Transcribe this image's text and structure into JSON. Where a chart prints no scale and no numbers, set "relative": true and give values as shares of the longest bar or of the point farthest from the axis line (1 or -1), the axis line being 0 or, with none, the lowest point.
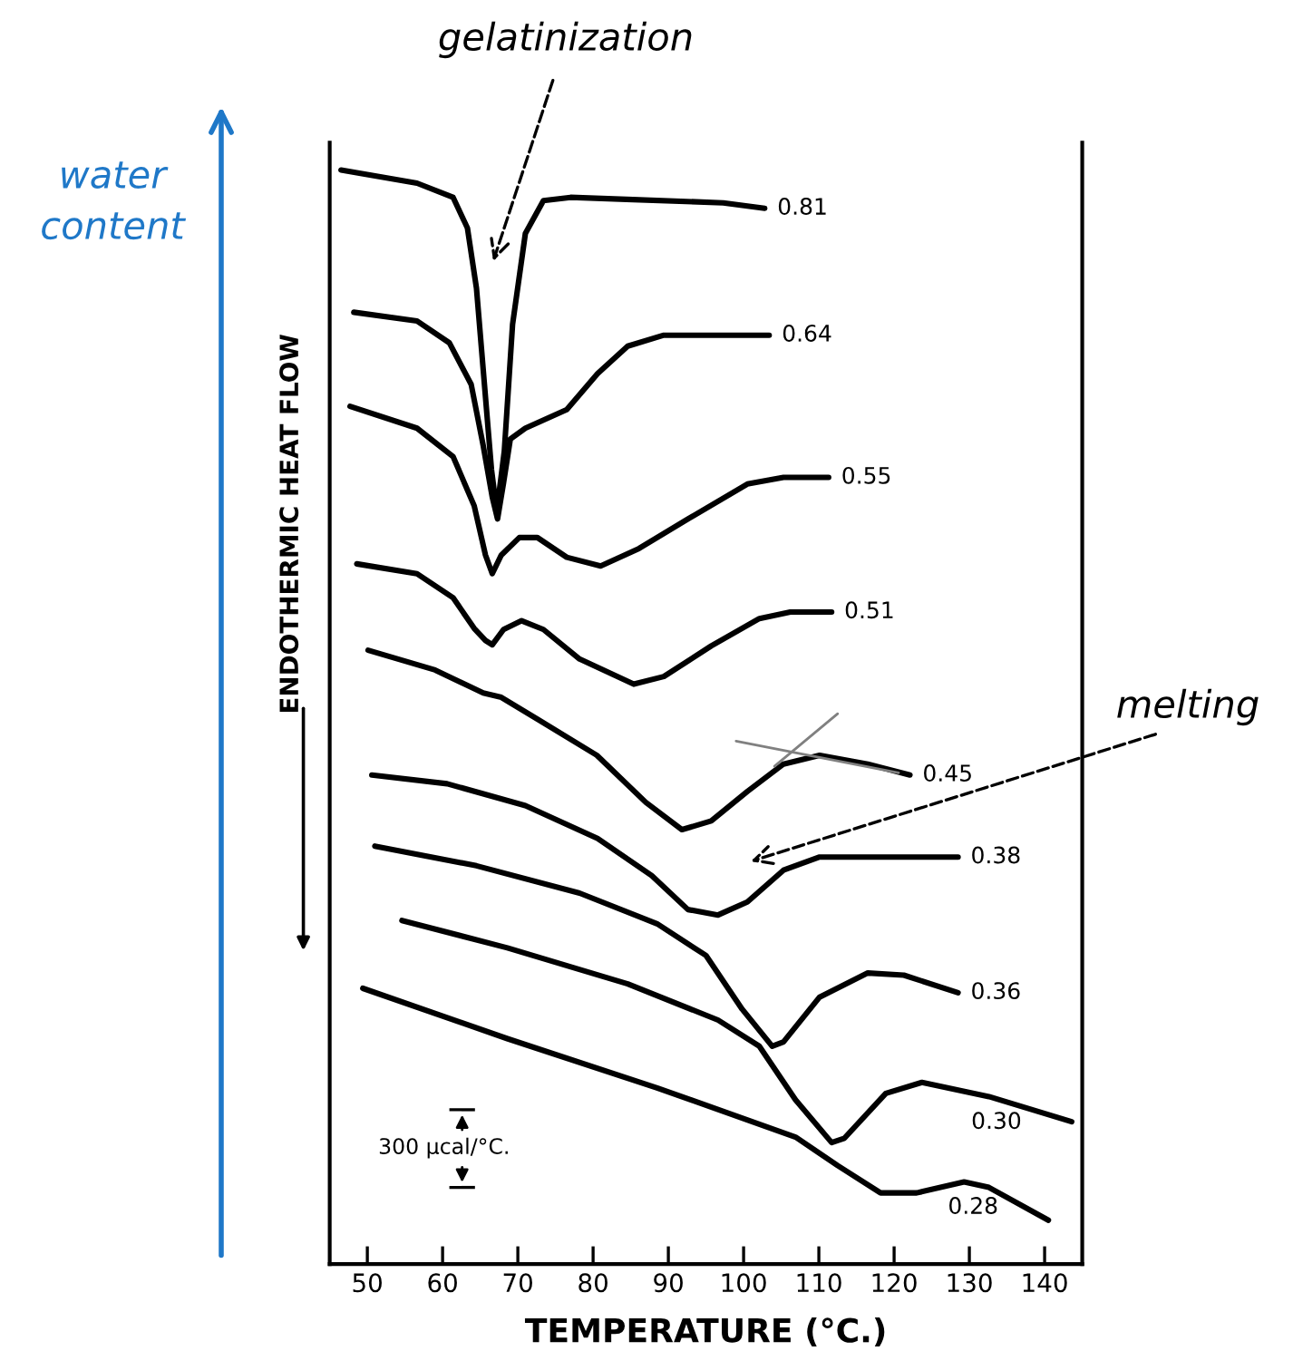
{
  "chart_data": {
    "type": "line",
    "relative": true,
    "xlabel": "TEMPERATURE (°C.)",
    "ylabel": "ENDOTHERMIC HEAT FLOW",
    "xlim": [
      45,
      145
    ],
    "xticks": [
      50,
      60,
      70,
      80,
      90,
      100,
      110,
      120,
      130,
      140
    ],
    "grid": false,
    "legend": false,
    "marker": "none",
    "line_style": "solid",
    "series": [
      {
        "name": "0.81",
        "color": "#000000",
        "x": [
          46.5,
          56.6,
          61.4,
          63.3,
          64.5,
          65.5,
          66.5,
          67.2,
          68.2,
          69.3,
          71.0,
          73.4,
          77.0,
          85.3,
          97.3,
          102.8
        ],
        "values": [
          1.0,
          0.988,
          0.975,
          0.947,
          0.892,
          0.809,
          0.726,
          0.688,
          0.743,
          0.859,
          0.942,
          0.972,
          0.975,
          0.973,
          0.97,
          0.965
        ]
      },
      {
        "name": "0.64",
        "color": "#000000",
        "x": [
          48.2,
          56.6,
          60.9,
          63.8,
          65.4,
          66.6,
          67.3,
          68.1,
          69.0,
          71.0,
          76.5,
          80.6,
          84.6,
          89.4,
          97.3,
          103.4
        ],
        "values": [
          0.87,
          0.862,
          0.842,
          0.804,
          0.748,
          0.701,
          0.681,
          0.714,
          0.754,
          0.764,
          0.781,
          0.814,
          0.839,
          0.849,
          0.849,
          0.849
        ]
      },
      {
        "name": "0.55",
        "color": "#000000",
        "x": [
          47.7,
          56.6,
          61.4,
          64.2,
          65.7,
          66.6,
          67.8,
          70.2,
          72.6,
          76.5,
          81.0,
          86.1,
          92.6,
          100.5,
          105.3,
          111.3
        ],
        "values": [
          0.784,
          0.764,
          0.738,
          0.693,
          0.648,
          0.631,
          0.648,
          0.664,
          0.664,
          0.646,
          0.638,
          0.654,
          0.681,
          0.713,
          0.719,
          0.719
        ]
      },
      {
        "name": "0.51",
        "color": "#000000",
        "x": [
          48.6,
          56.6,
          61.4,
          64.2,
          65.7,
          66.6,
          68.1,
          70.5,
          73.4,
          78.2,
          85.4,
          89.4,
          95.7,
          102.1,
          106.2,
          111.7
        ],
        "values": [
          0.64,
          0.631,
          0.609,
          0.581,
          0.57,
          0.566,
          0.58,
          0.588,
          0.58,
          0.553,
          0.53,
          0.537,
          0.565,
          0.59,
          0.596,
          0.596
        ]
      },
      {
        "name": "0.45",
        "color": "#000000",
        "x": [
          50.1,
          59.0,
          65.4,
          67.8,
          72.6,
          80.5,
          87.0,
          91.8,
          95.7,
          100.5,
          105.3,
          110.1,
          116.5,
          122.1
        ],
        "values": [
          0.561,
          0.543,
          0.522,
          0.518,
          0.498,
          0.465,
          0.422,
          0.397,
          0.405,
          0.432,
          0.457,
          0.465,
          0.457,
          0.447
        ]
      },
      {
        "name": "0.38",
        "color": "#000000",
        "x": [
          50.6,
          60.6,
          71.0,
          80.6,
          87.8,
          92.6,
          96.6,
          100.5,
          105.3,
          110.1,
          116.5,
          128.5
        ],
        "values": [
          0.447,
          0.439,
          0.419,
          0.389,
          0.355,
          0.324,
          0.319,
          0.331,
          0.36,
          0.372,
          0.372,
          0.372
        ]
      },
      {
        "name": "0.36",
        "color": "#000000",
        "x": [
          51.0,
          64.5,
          78.2,
          88.5,
          95.0,
          99.8,
          103.8,
          105.3,
          110.1,
          116.5,
          121.3,
          128.5
        ],
        "values": [
          0.382,
          0.364,
          0.339,
          0.311,
          0.282,
          0.233,
          0.199,
          0.203,
          0.244,
          0.266,
          0.264,
          0.248
        ]
      },
      {
        "name": "0.30",
        "color": "#000000",
        "x": [
          54.6,
          68.6,
          84.6,
          96.6,
          102.1,
          106.9,
          111.7,
          113.4,
          118.9,
          123.7,
          132.6,
          143.6
        ],
        "values": [
          0.314,
          0.289,
          0.256,
          0.223,
          0.199,
          0.15,
          0.111,
          0.115,
          0.156,
          0.166,
          0.153,
          0.13
        ]
      },
      {
        "name": "0.28",
        "color": "#000000",
        "x": [
          49.4,
          68.6,
          88.5,
          106.9,
          112.5,
          118.2,
          123.0,
          129.3,
          132.6,
          140.5
        ],
        "values": [
          0.252,
          0.206,
          0.161,
          0.116,
          0.09,
          0.065,
          0.065,
          0.075,
          0.07,
          0.04
        ]
      },
      {
        "color": "#808080",
        "x": [
          99.0,
          120.6
        ],
        "values": [
          0.478,
          0.449
        ]
      },
      {
        "color": "#808080",
        "x": [
          104.1,
          112.5
        ],
        "values": [
          0.455,
          0.503
        ]
      }
    ],
    "annotations": [
      "gelatinization",
      "melting",
      "water content",
      "300 µcal/°C."
    ]
  }
}
